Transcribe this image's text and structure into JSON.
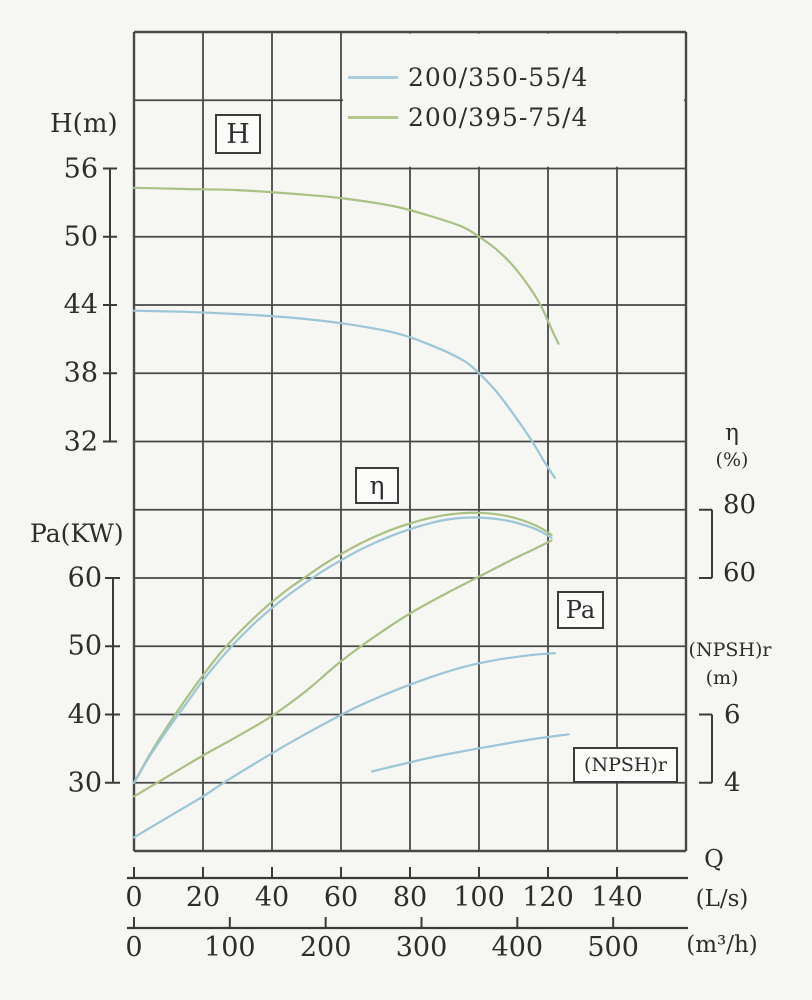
{
  "colors": {
    "background": "#f6f6f3",
    "grid": "#484848",
    "border": "#333333",
    "axis": "#3a3a3a",
    "text": "#2d2d2d",
    "blue": "#9cc6d8",
    "green": "#a9c183"
  },
  "legend": {
    "items": [
      {
        "label": "200/350-55/4",
        "color": "#a9cedd"
      },
      {
        "label": "200/395-75/4",
        "color": "#b3c78c"
      }
    ]
  },
  "labels": {
    "h_axis_title": "H(m)",
    "pa_axis_title": "Pa(KW)",
    "eta_title": "η",
    "eta_unit": "(%)",
    "npshr_title": "(NPSH)r",
    "npshr_unit": "(m)",
    "q_title": "Q",
    "q_unit_ls": "(L/s)",
    "q_unit_m3h": "(m³/h)",
    "box_h": "H",
    "box_eta": "η",
    "box_pa": "Pa",
    "box_npshr": "(NPSH)r"
  },
  "chart_data": {
    "type": "line",
    "title": "",
    "x_axis": {
      "label": "Q",
      "unit_primary": "L/s",
      "unit_secondary": "m³/h",
      "range_ls": [
        0,
        160
      ],
      "ticks_ls": [
        0,
        20,
        40,
        60,
        80,
        100,
        120,
        140
      ],
      "ticks_m3h": [
        0,
        100,
        200,
        300,
        400,
        500
      ]
    },
    "y_axes": {
      "H": {
        "label": "H(m)",
        "ticks": [
          56,
          50,
          44,
          38,
          32
        ]
      },
      "Pa": {
        "label": "Pa(KW)",
        "ticks": [
          60,
          50,
          40,
          30
        ]
      },
      "eta": {
        "label": "η(%)",
        "ticks": [
          80,
          60
        ]
      },
      "NPSH": {
        "label": "(NPSH)r(m)",
        "ticks": [
          6,
          4
        ]
      }
    },
    "grid": true,
    "legend_position": "top-right",
    "series": [
      {
        "id": "h-200-395",
        "name": "H 200/395-75/4",
        "axis": "H",
        "color": "green",
        "points": [
          [
            0,
            54.3
          ],
          [
            15,
            54.2
          ],
          [
            30,
            54.1
          ],
          [
            45,
            53.8
          ],
          [
            60,
            53.4
          ],
          [
            75,
            52.7
          ],
          [
            85,
            51.9
          ],
          [
            95,
            50.9
          ],
          [
            100,
            50
          ],
          [
            105,
            48.9
          ],
          [
            110,
            47.4
          ],
          [
            115,
            45.4
          ],
          [
            118,
            43.9
          ],
          [
            121,
            41.9
          ],
          [
            123,
            40.6
          ]
        ]
      },
      {
        "id": "h-200-350",
        "name": "H 200/350-55/4",
        "axis": "H",
        "color": "blue",
        "points": [
          [
            0,
            43.5
          ],
          [
            15,
            43.4
          ],
          [
            30,
            43.2
          ],
          [
            45,
            42.9
          ],
          [
            60,
            42.4
          ],
          [
            75,
            41.6
          ],
          [
            85,
            40.6
          ],
          [
            95,
            39.2
          ],
          [
            100,
            38
          ],
          [
            105,
            36.4
          ],
          [
            110,
            34.4
          ],
          [
            115,
            32.2
          ],
          [
            119,
            30.2
          ],
          [
            122,
            28.8
          ]
        ]
      },
      {
        "id": "eta-200-395",
        "name": "η 200/395-75/4",
        "axis": "eta",
        "color": "green",
        "points": [
          [
            0,
            0
          ],
          [
            5,
            9
          ],
          [
            10,
            17
          ],
          [
            15,
            24.5
          ],
          [
            20,
            31.5
          ],
          [
            25,
            38
          ],
          [
            30,
            43.5
          ],
          [
            35,
            48.5
          ],
          [
            40,
            53
          ],
          [
            45,
            57
          ],
          [
            50,
            60.5
          ],
          [
            55,
            64
          ],
          [
            60,
            67
          ],
          [
            65,
            69.8
          ],
          [
            70,
            72.2
          ],
          [
            75,
            74.3
          ],
          [
            80,
            76
          ],
          [
            85,
            77.4
          ],
          [
            90,
            78.4
          ],
          [
            95,
            79
          ],
          [
            100,
            79.1
          ],
          [
            105,
            78.7
          ],
          [
            110,
            77.7
          ],
          [
            115,
            76
          ],
          [
            118,
            74.6
          ],
          [
            121,
            72.6
          ]
        ]
      },
      {
        "id": "eta-200-350",
        "name": "η 200/350-55/4",
        "axis": "eta",
        "color": "blue",
        "points": [
          [
            0,
            0
          ],
          [
            5,
            8.5
          ],
          [
            10,
            16
          ],
          [
            15,
            23
          ],
          [
            20,
            30
          ],
          [
            25,
            36.2
          ],
          [
            30,
            41.8
          ],
          [
            35,
            46.8
          ],
          [
            40,
            51.2
          ],
          [
            45,
            55.2
          ],
          [
            50,
            58.8
          ],
          [
            55,
            62.2
          ],
          [
            60,
            65.2
          ],
          [
            65,
            68
          ],
          [
            70,
            70.4
          ],
          [
            75,
            72.5
          ],
          [
            80,
            74.3
          ],
          [
            85,
            75.8
          ],
          [
            90,
            77
          ],
          [
            95,
            77.6
          ],
          [
            100,
            77.7
          ],
          [
            105,
            77.3
          ],
          [
            110,
            76.4
          ],
          [
            115,
            74.9
          ],
          [
            118,
            73.6
          ],
          [
            121,
            71.8
          ]
        ]
      },
      {
        "id": "pa-200-395",
        "name": "Pa 200/395-75/4",
        "axis": "Pa",
        "color": "green",
        "points": [
          [
            0,
            28
          ],
          [
            10,
            31
          ],
          [
            20,
            34
          ],
          [
            30,
            36.8
          ],
          [
            40,
            39.8
          ],
          [
            50,
            43.5
          ],
          [
            60,
            47.8
          ],
          [
            70,
            51.5
          ],
          [
            80,
            54.8
          ],
          [
            90,
            57.6
          ],
          [
            100,
            60.2
          ],
          [
            110,
            62.8
          ],
          [
            115,
            64
          ],
          [
            121,
            65.5
          ]
        ]
      },
      {
        "id": "pa-200-350",
        "name": "Pa 200/350-55/4",
        "axis": "Pa",
        "color": "blue",
        "points": [
          [
            0,
            22
          ],
          [
            10,
            25
          ],
          [
            20,
            28
          ],
          [
            26,
            30
          ],
          [
            35,
            32.8
          ],
          [
            45,
            35.8
          ],
          [
            55,
            38.6
          ],
          [
            65,
            41.2
          ],
          [
            75,
            43.4
          ],
          [
            85,
            45.3
          ],
          [
            95,
            46.9
          ],
          [
            105,
            48
          ],
          [
            115,
            48.7
          ],
          [
            122,
            49
          ]
        ]
      },
      {
        "id": "npshr",
        "name": "(NPSH)r",
        "axis": "NPSH",
        "color": "blue",
        "points": [
          [
            69,
            4.33
          ],
          [
            78,
            4.55
          ],
          [
            88,
            4.78
          ],
          [
            98,
            4.97
          ],
          [
            108,
            5.15
          ],
          [
            117,
            5.3
          ],
          [
            126,
            5.42
          ]
        ]
      }
    ]
  }
}
